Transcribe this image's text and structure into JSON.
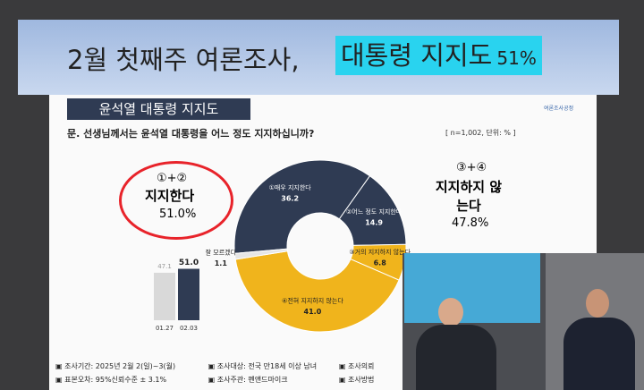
{
  "header": {
    "title": "2월 첫째주 여론조사,",
    "highlight": "대통령 지지도",
    "highlight_value": "51%"
  },
  "slide": {
    "section": "윤석열 대통령 지지도",
    "logo": "여론조사공정",
    "question": "문. 선생님께서는 윤석열 대통령을 어느 정도 지지하십니까?",
    "sample": "[ n=1,002, 단위: % ]",
    "support": {
      "marker": "①+②",
      "label": "지지한다",
      "value": "51.0%"
    },
    "oppose": {
      "marker": "③+④",
      "label": "지지하지 않는다",
      "value": "47.8%"
    },
    "footer": [
      "▣ 조사기간: 2025년 2월 2(일)~3(월)",
      "▣ 조사대상: 전국 만18세 이상 남녀",
      "▣ 조사의뢰",
      "▣ 표본오차: 95%신뢰수준 ± 3.1%",
      "▣ 조사주관: 펜앤드마이크",
      "▣ 조사방법"
    ]
  },
  "chart_data": [
    {
      "type": "pie",
      "categories": [
        "①매우 지지한다",
        "②어느 정도 지지한다",
        "③거의 지지하지 않는다",
        "④전혀 지지하지 않는다",
        "잘 모르겠다"
      ],
      "values": [
        36.2,
        14.9,
        6.8,
        41.0,
        1.1
      ],
      "value_labels": [
        "36.2",
        "14.9",
        "6.8",
        "41.0",
        "1.1"
      ],
      "colors": [
        "#2f3b53",
        "#2f3b53",
        "#f0b41c",
        "#f0b41c",
        "#e6e6e6"
      ]
    },
    {
      "type": "bar",
      "categories": [
        "01.27",
        "02.03"
      ],
      "values": [
        47.1,
        51.0
      ],
      "value_labels": [
        "47.1",
        "51.0"
      ],
      "colors": [
        "#d9d9d9",
        "#2f3b53"
      ],
      "ylim": [
        0,
        55
      ]
    }
  ]
}
